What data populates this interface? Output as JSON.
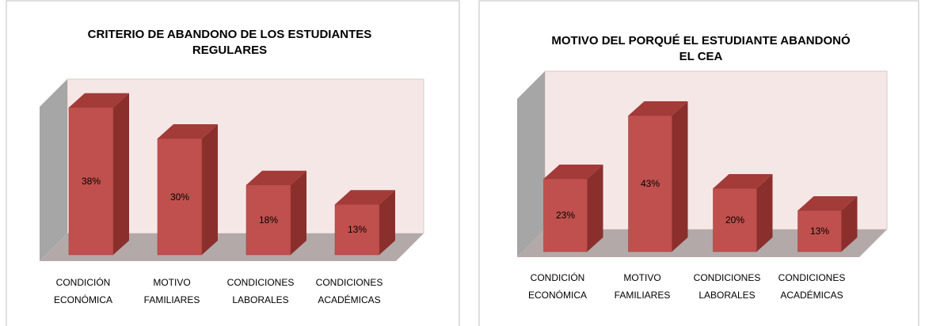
{
  "chart_data": [
    {
      "type": "bar",
      "title": "CRITERIO DE ABANDONO DE LOS ESTUDIANTES REGULARES",
      "categories": [
        "CONDICIÓN ECONÓMICA",
        "MOTIVO FAMILIARES",
        "CONDICIONES LABORALES",
        "CONDICIONES ACADÉMICAS"
      ],
      "values": [
        38,
        30,
        18,
        13
      ],
      "value_labels": [
        "38%",
        "30%",
        "18%",
        "13%"
      ],
      "color": "#c0504d"
    },
    {
      "type": "bar",
      "title": "MOTIVO DEL PORQUÉ EL ESTUDIANTE ABANDONÓ EL CEA",
      "categories": [
        "CONDICIÓN ECONÓMICA",
        "MOTIVO FAMILIARES",
        "CONDICIONES LABORALES",
        "CONDICIONES ACADÉMICAS"
      ],
      "values": [
        23,
        43,
        20,
        13
      ],
      "value_labels": [
        "23%",
        "43%",
        "20%",
        "13%"
      ],
      "color": "#c0504d"
    }
  ]
}
